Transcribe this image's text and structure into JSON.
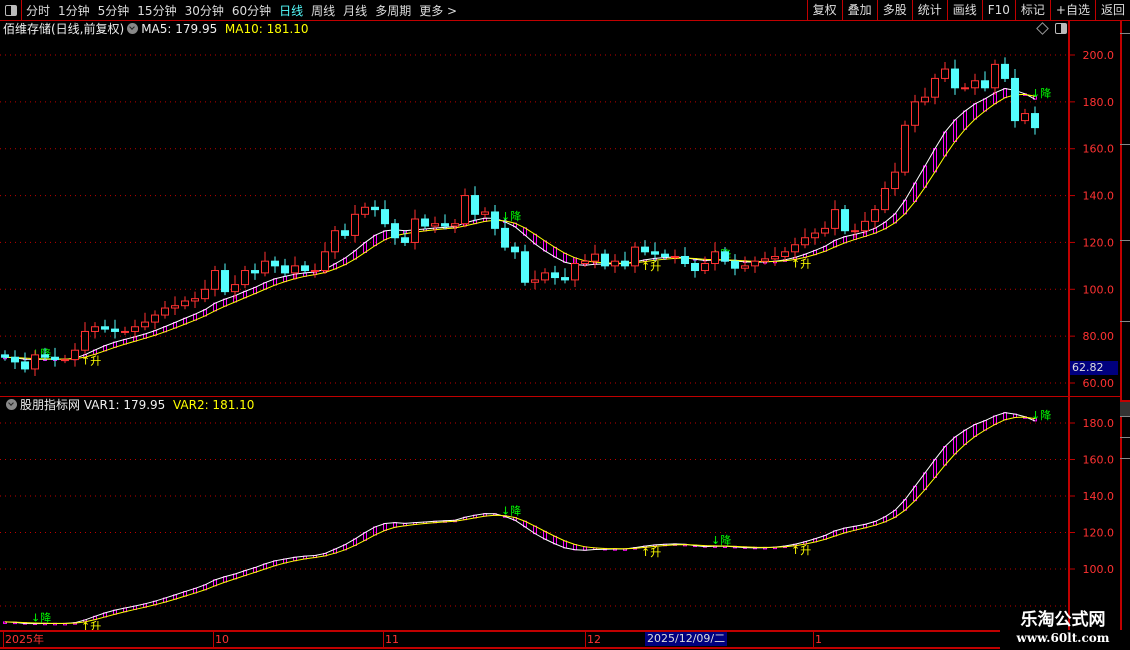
{
  "toolbar": {
    "periods": [
      "分时",
      "1分钟",
      "5分钟",
      "15分钟",
      "30分钟",
      "60分钟",
      "日线",
      "周线",
      "月线",
      "多周期",
      "更多 >"
    ],
    "active_period": "日线",
    "buttons": [
      "复权",
      "叠加",
      "多股",
      "统计",
      "画线",
      "F10",
      "标记",
      "+自选",
      "返回"
    ]
  },
  "main_pane": {
    "title": "佰维存储(日线,前复权)",
    "ma5_label": "MA5: 179.95",
    "ma10_label": "MA10: 181.10",
    "current_price": "62.82",
    "y_ticks": [
      "200.0",
      "180.0",
      "160.0",
      "140.0",
      "120.0",
      "100.0",
      "80.00",
      "60.00"
    ]
  },
  "sub_pane": {
    "title": "股朋指标网",
    "var1_label": "VAR1: 179.95",
    "var2_label": "VAR2: 181.10",
    "y_ticks": [
      "180.0",
      "160.0",
      "140.0",
      "120.0",
      "100.0"
    ]
  },
  "date_axis": {
    "labels": [
      "2025年",
      "10",
      "11",
      "12",
      "1"
    ],
    "selected_date": "2025/12/09/二"
  },
  "watermark": {
    "name": "乐淘公式网",
    "url": "www.60lt.com"
  },
  "colors": {
    "up": "#ff3232",
    "down": "#54fcfc",
    "var1": "#ffffff",
    "var2": "#ffff00",
    "band": "#ff00ff",
    "grid": "#c00000",
    "signal_down": "#00ff00",
    "signal_up": "#ffff00"
  },
  "chart_data": {
    "type": "candlestick",
    "ylim": [
      57,
      208
    ],
    "sub_ylim": [
      95,
      190
    ],
    "open": [
      72,
      71,
      69,
      66,
      72,
      71,
      70,
      70,
      74,
      82,
      84,
      83,
      82,
      82,
      84,
      86,
      89,
      92,
      93,
      95,
      96,
      100,
      108,
      99,
      102,
      108,
      107,
      112,
      110,
      107,
      110,
      108,
      108,
      116,
      125,
      123,
      132,
      135,
      134,
      128,
      122,
      120,
      130,
      127,
      128,
      127,
      128,
      140,
      132,
      133,
      126,
      118,
      116,
      103,
      104,
      107,
      105,
      104,
      111,
      112,
      115,
      110,
      112,
      110,
      118,
      116,
      115,
      114,
      114,
      111,
      108,
      111,
      116,
      112,
      109,
      110,
      112,
      113,
      114,
      116,
      119,
      122,
      124,
      126,
      134,
      125,
      125,
      129,
      134,
      143,
      150,
      170,
      180,
      182,
      190,
      194,
      186,
      186,
      189,
      186,
      196,
      190,
      172,
      175
    ],
    "close": [
      71,
      69,
      66,
      72,
      71,
      70,
      70,
      74,
      82,
      84,
      83,
      82,
      82,
      84,
      86,
      89,
      92,
      93,
      95,
      96,
      100,
      108,
      99,
      102,
      108,
      107,
      112,
      110,
      107,
      110,
      108,
      108,
      116,
      125,
      123,
      132,
      135,
      134,
      128,
      122,
      120,
      130,
      127,
      128,
      127,
      128,
      140,
      132,
      133,
      126,
      118,
      116,
      103,
      104,
      107,
      105,
      104,
      111,
      112,
      115,
      110,
      112,
      110,
      118,
      116,
      115,
      114,
      114,
      111,
      108,
      111,
      116,
      112,
      109,
      110,
      112,
      113,
      114,
      116,
      119,
      122,
      124,
      126,
      134,
      125,
      125,
      129,
      134,
      143,
      150,
      170,
      180,
      182,
      190,
      194,
      186,
      186,
      189,
      186,
      196,
      190,
      172,
      175,
      169
    ],
    "signals": [
      {
        "index": 3,
        "text": "降"
      },
      {
        "index": 8,
        "text": "升"
      },
      {
        "index": 50,
        "text": "降"
      },
      {
        "index": 64,
        "text": "升"
      },
      {
        "index": 71,
        "text": "降"
      },
      {
        "index": 79,
        "text": "升"
      },
      {
        "index": 103,
        "text": "降"
      }
    ]
  }
}
